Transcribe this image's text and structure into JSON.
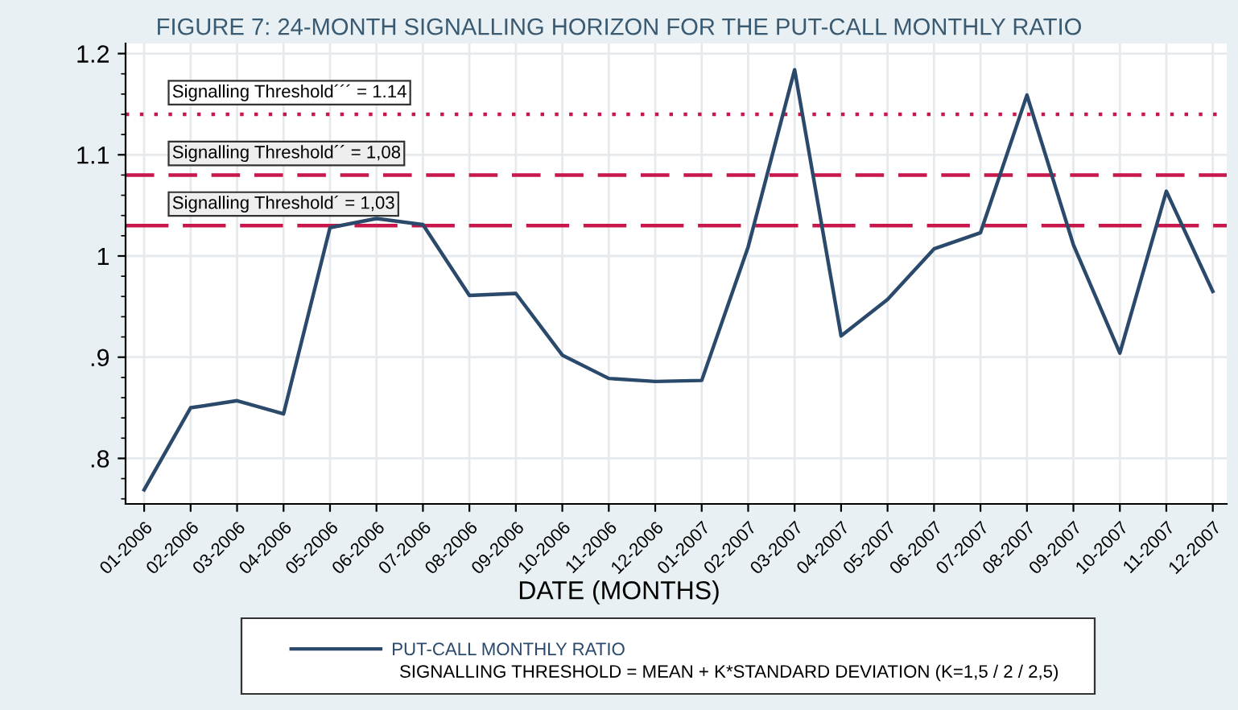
{
  "chart_data": {
    "type": "line",
    "title": "FIGURE 7: 24-MONTH SIGNALLING HORIZON FOR THE PUT-CALL MONTHLY RATIO",
    "xlabel": "DATE (MONTHS)",
    "categories": [
      "01-2006",
      "02-2006",
      "03-2006",
      "04-2006",
      "05-2006",
      "06-2006",
      "07-2006",
      "08-2006",
      "09-2006",
      "10-2006",
      "11-2006",
      "12-2006",
      "01-2007",
      "02-2007",
      "03-2007",
      "04-2007",
      "05-2007",
      "06-2007",
      "07-2007",
      "08-2007",
      "09-2007",
      "10-2007",
      "11-2007",
      "12-2007"
    ],
    "series": [
      {
        "name": "PUT-CALL MONTHLY RATIO",
        "color": "#2b4a6b",
        "values": [
          0.769,
          0.85,
          0.857,
          0.844,
          1.028,
          1.037,
          1.031,
          0.961,
          0.963,
          0.902,
          0.879,
          0.876,
          0.877,
          1.009,
          1.184,
          0.921,
          0.957,
          1.007,
          1.023,
          1.159,
          1.011,
          0.904,
          1.064,
          0.965
        ]
      }
    ],
    "ylim": [
      0.755,
      1.21
    ],
    "yticks": [
      {
        "value": 0.8,
        "label": ".8"
      },
      {
        "value": 0.9,
        "label": ".9"
      },
      {
        "value": 1.0,
        "label": "1"
      },
      1.1,
      1.2
    ],
    "ref_lines": [
      {
        "axis": "y",
        "value": 1.14,
        "label": "Signalling Threshold´´´ = 1.14",
        "color": "#c8174a",
        "line_style": "dotted"
      },
      {
        "axis": "y",
        "value": 1.08,
        "label": "Signalling Threshold´´ = 1,08",
        "color": "#c8174a",
        "line_style": "dashed"
      },
      {
        "axis": "y",
        "value": 1.03,
        "label": "Signalling Threshold´ = 1,03",
        "color": "#c8174a",
        "line_style": "dashed"
      }
    ],
    "annotations": [
      "SIGNALLING THRESHOLD = MEAN + K*STANDARD DEVIATION (K=1,5 / 2 / 2,5)"
    ],
    "grid": true,
    "legend": "bottom",
    "marker": "none",
    "line_style": "solid"
  }
}
